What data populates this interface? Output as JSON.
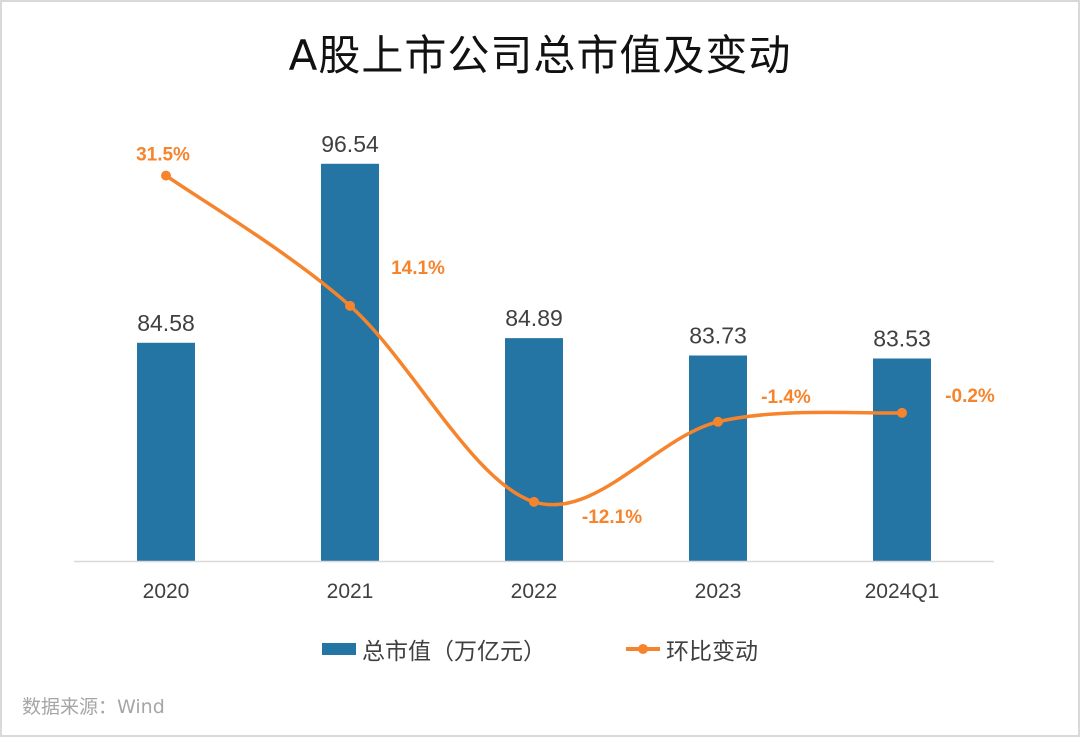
{
  "chart_data": {
    "type": "bar+line",
    "title": "A股上市公司总市值及变动",
    "categories": [
      "2020",
      "2021",
      "2022",
      "2023",
      "2024Q1"
    ],
    "series": [
      {
        "name": "总市值（万亿元）",
        "type": "bar",
        "axis": "primary",
        "values": [
          84.58,
          96.54,
          84.89,
          83.73,
          83.53
        ],
        "labels": [
          "84.58",
          "96.54",
          "84.89",
          "83.73",
          "83.53"
        ],
        "color": "#2474a4"
      },
      {
        "name": "环比变动",
        "type": "line",
        "smooth": true,
        "axis": "secondary",
        "values": [
          31.5,
          14.1,
          -12.1,
          -1.4,
          -0.2
        ],
        "labels": [
          "31.5%",
          "14.1%",
          "-12.1%",
          "-1.4%",
          "-0.2%"
        ],
        "color": "#f5842c"
      }
    ],
    "ylim": [
      70,
      100
    ],
    "y2lim": [
      -20,
      40
    ],
    "axes_visible": false,
    "grid": false,
    "legend": "bottom"
  },
  "source": "数据来源：Wind"
}
